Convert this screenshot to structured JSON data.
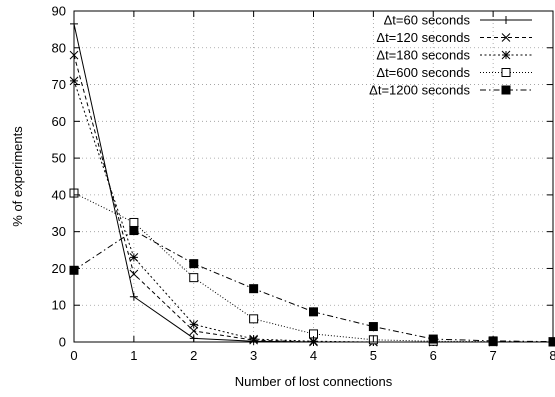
{
  "chart_data": {
    "type": "line",
    "title": "",
    "xlabel": "Number of lost connections",
    "ylabel": "% of experiments",
    "xlim": [
      0,
      8
    ],
    "ylim": [
      0,
      90
    ],
    "x_ticks": [
      0,
      1,
      2,
      3,
      4,
      5,
      6,
      7,
      8
    ],
    "y_ticks": [
      0,
      10,
      20,
      30,
      40,
      50,
      60,
      70,
      80,
      90
    ],
    "grid": true,
    "legend_position": "top-right",
    "x": [
      0,
      1,
      2,
      3,
      4,
      5,
      6,
      7,
      8
    ],
    "series": [
      {
        "name": "Δt=60 seconds",
        "marker": "plus",
        "dash": "solid",
        "values": [
          86.5,
          12.3,
          1.0,
          0.2,
          0,
          0,
          0,
          0,
          0
        ]
      },
      {
        "name": "Δt=120 seconds",
        "marker": "cross",
        "dash": "dashed",
        "values": [
          78.0,
          18.5,
          3.0,
          0.5,
          0,
          0,
          0,
          0,
          0
        ]
      },
      {
        "name": "Δt=180 seconds",
        "marker": "star",
        "dash": "dotted",
        "values": [
          71.0,
          23.0,
          4.8,
          0.8,
          0.2,
          0,
          0,
          0,
          0
        ]
      },
      {
        "name": "Δt=600 seconds",
        "marker": "open-square",
        "dash": "fine-dotted",
        "values": [
          40.5,
          32.5,
          17.5,
          6.3,
          2.2,
          0.6,
          0.2,
          0.1,
          0
        ]
      },
      {
        "name": "Δt=1200 seconds",
        "marker": "filled-square",
        "dash": "dash-dot",
        "values": [
          19.5,
          30.3,
          21.3,
          14.5,
          8.2,
          4.2,
          0.8,
          0.3,
          0.1
        ]
      }
    ]
  }
}
